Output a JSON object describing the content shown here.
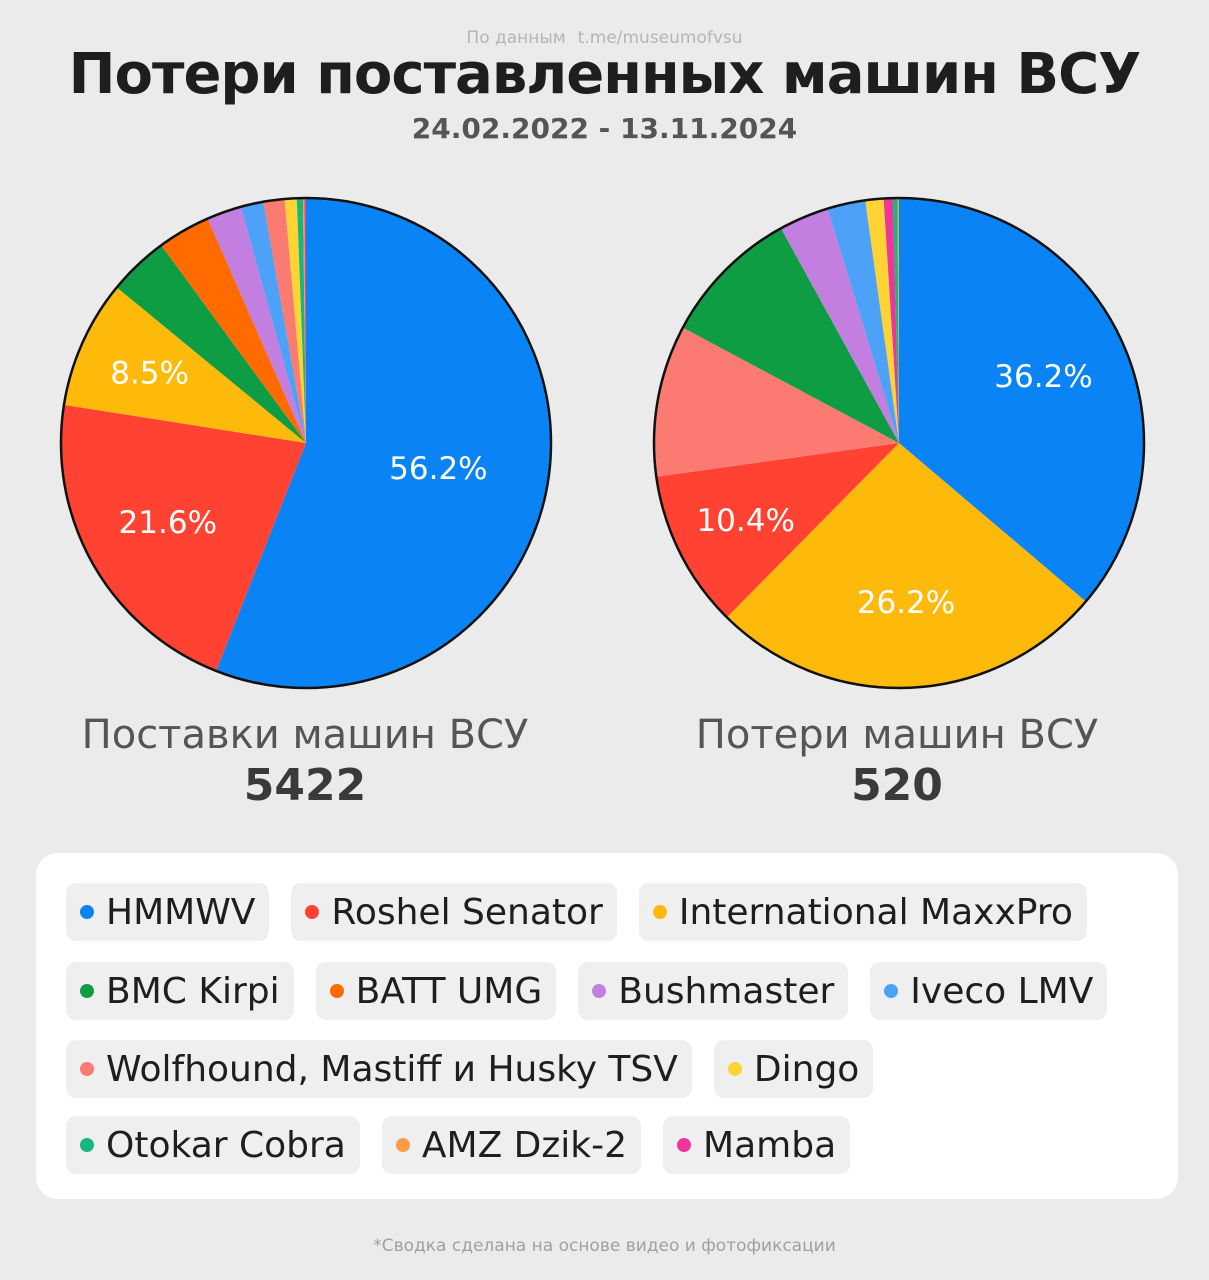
{
  "header": {
    "source_label": "По данным",
    "source_link": "t.me/museumofvsu",
    "title": "Потери поставленных машин ВСУ",
    "date_range": "24.02.2022 - 13.11.2024"
  },
  "chart_data": [
    {
      "type": "pie",
      "title": "Поставки машин ВСУ",
      "total": "5422",
      "categories": [
        "HMMWV",
        "Roshel Senator",
        "International MaxxPro",
        "BMC Kirpi",
        "BATT UMG",
        "Bushmaster",
        "Iveco LMV",
        "Wolfhound, Mastiff и Husky TSV",
        "Dingo",
        "Otokar Cobra",
        "AMZ Dzik-2",
        "Mamba"
      ],
      "values": [
        56.2,
        21.6,
        8.5,
        4.0,
        3.5,
        2.3,
        1.5,
        1.4,
        0.8,
        0.4,
        0.1,
        0.1
      ],
      "labels": [
        "56.2%",
        "21.6%",
        "8.5%",
        "",
        "",
        "",
        "",
        "",
        "",
        "",
        "",
        ""
      ]
    },
    {
      "type": "pie",
      "title": "Потери машин ВСУ",
      "total": "520",
      "categories": [
        "HMMWV",
        "International MaxxPro",
        "Roshel Senator",
        "Wolfhound, Mastiff и Husky TSV",
        "BMC Kirpi",
        "Bushmaster",
        "Iveco LMV",
        "Dingo",
        "Mamba",
        "Otokar Cobra",
        "AMZ Dzik-2"
      ],
      "values": [
        36.2,
        26.2,
        10.4,
        10.0,
        9.2,
        3.3,
        2.5,
        1.2,
        0.6,
        0.3,
        0.1
      ],
      "labels": [
        "36.2%",
        "26.2%",
        "10.4%",
        "",
        "",
        "",
        "",
        "",
        "",
        "",
        ""
      ]
    }
  ],
  "legend": {
    "rows": [
      [
        {
          "label": "HMMWV",
          "color": "#0a84f5"
        },
        {
          "label": "Roshel Senator",
          "color": "#ff4232"
        },
        {
          "label": "International MaxxPro",
          "color": "#fdba0a"
        }
      ],
      [
        {
          "label": "BMC Kirpi",
          "color": "#0f9d44"
        },
        {
          "label": "BATT UMG",
          "color": "#ff6b00"
        },
        {
          "label": "Bushmaster",
          "color": "#c27fe0"
        },
        {
          "label": "Iveco LMV",
          "color": "#4da2f8"
        }
      ],
      [
        {
          "label": "Wolfhound, Mastiff и Husky TSV",
          "color": "#fb7b73"
        },
        {
          "label": "Dingo",
          "color": "#fdd434"
        }
      ],
      [
        {
          "label": "Otokar Cobra",
          "color": "#15b87f"
        },
        {
          "label": "AMZ Dzik-2",
          "color": "#ff9a44"
        },
        {
          "label": "Mamba",
          "color": "#f0359a"
        }
      ]
    ]
  },
  "footnote": "*Сводка сделана на основе видео и фотофиксации"
}
